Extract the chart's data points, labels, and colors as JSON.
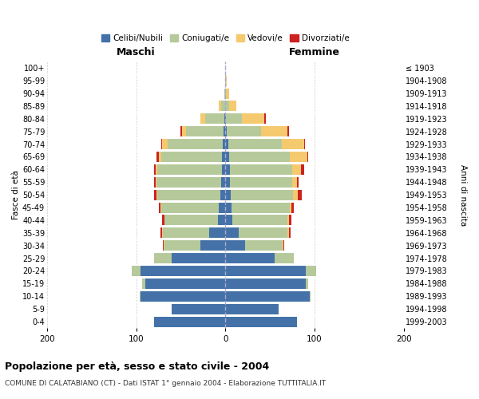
{
  "age_groups": [
    "0-4",
    "5-9",
    "10-14",
    "15-19",
    "20-24",
    "25-29",
    "30-34",
    "35-39",
    "40-44",
    "45-49",
    "50-54",
    "55-59",
    "60-64",
    "65-69",
    "70-74",
    "75-79",
    "80-84",
    "85-89",
    "90-94",
    "95-99",
    "100+"
  ],
  "birth_years": [
    "1999-2003",
    "1994-1998",
    "1989-1993",
    "1984-1988",
    "1979-1983",
    "1974-1978",
    "1969-1973",
    "1964-1968",
    "1959-1963",
    "1954-1958",
    "1949-1953",
    "1944-1948",
    "1939-1943",
    "1934-1938",
    "1929-1933",
    "1924-1928",
    "1919-1923",
    "1914-1918",
    "1909-1913",
    "1904-1908",
    "≤ 1903"
  ],
  "male": {
    "celibi": [
      80,
      60,
      95,
      90,
      95,
      60,
      28,
      18,
      8,
      7,
      6,
      5,
      4,
      4,
      3,
      2,
      1,
      0,
      0,
      0,
      0
    ],
    "coniugati": [
      0,
      0,
      1,
      3,
      10,
      20,
      40,
      52,
      60,
      65,
      70,
      72,
      72,
      68,
      62,
      42,
      22,
      5,
      1,
      0,
      0
    ],
    "vedovi": [
      0,
      0,
      0,
      0,
      0,
      0,
      1,
      1,
      0,
      1,
      1,
      1,
      2,
      3,
      6,
      5,
      5,
      2,
      0,
      0,
      0
    ],
    "divorziati": [
      0,
      0,
      0,
      0,
      0,
      0,
      1,
      2,
      3,
      2,
      3,
      2,
      2,
      2,
      1,
      1,
      0,
      0,
      0,
      0,
      0
    ]
  },
  "female": {
    "nubili": [
      80,
      60,
      95,
      90,
      90,
      55,
      22,
      15,
      8,
      7,
      6,
      5,
      5,
      4,
      3,
      2,
      1,
      0,
      0,
      0,
      0
    ],
    "coniugate": [
      0,
      0,
      1,
      3,
      12,
      22,
      42,
      55,
      62,
      65,
      70,
      70,
      70,
      68,
      60,
      38,
      18,
      4,
      1,
      1,
      0
    ],
    "vedove": [
      0,
      0,
      0,
      0,
      0,
      0,
      1,
      1,
      1,
      2,
      5,
      5,
      10,
      20,
      25,
      30,
      25,
      8,
      3,
      1,
      0
    ],
    "divorziate": [
      0,
      0,
      0,
      0,
      0,
      0,
      1,
      2,
      3,
      3,
      5,
      2,
      3,
      1,
      1,
      1,
      1,
      0,
      0,
      0,
      0
    ]
  },
  "color_celibi": "#4472a8",
  "color_coniugati": "#b5c99a",
  "color_vedovi": "#f5c96e",
  "color_divorziati": "#cc2222",
  "title": "Popolazione per età, sesso e stato civile - 2004",
  "subtitle": "COMUNE DI CALATABIANO (CT) - Dati ISTAT 1° gennaio 2004 - Elaborazione TUTTITALIA.IT",
  "xlabel_maschi": "Maschi",
  "xlabel_femmine": "Femmine",
  "ylabel_left": "Fasce di età",
  "ylabel_right": "Anni di nascita",
  "xlim": 200,
  "background_color": "#ffffff",
  "grid_color": "#cccccc"
}
